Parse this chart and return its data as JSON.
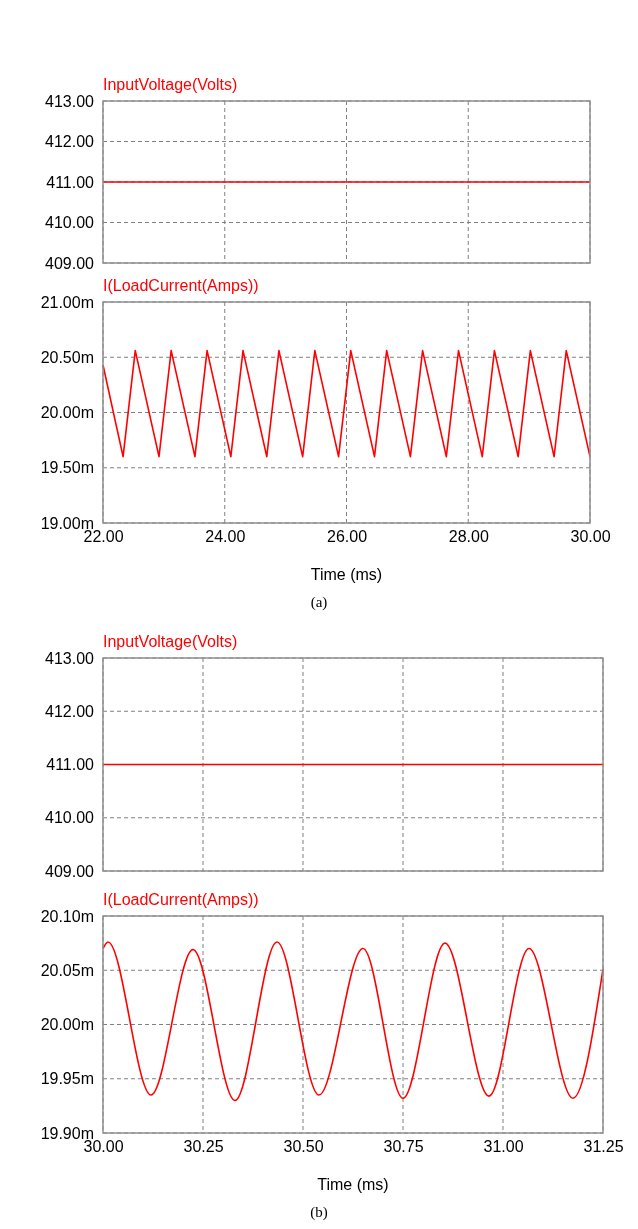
{
  "chart_data": [
    {
      "type": "line",
      "title": "InputVoltage(Volts)",
      "x": [
        22,
        30
      ],
      "xlim": [
        22,
        30
      ],
      "xticks": [
        {
          "value": 22,
          "label": null
        },
        {
          "value": 24,
          "label": null
        },
        {
          "value": 26,
          "label": null
        },
        {
          "value": 28,
          "label": null
        },
        {
          "value": 30,
          "label": null
        }
      ],
      "ylim": [
        409,
        413
      ],
      "yticks": [
        {
          "value": 409,
          "label": "409.00"
        },
        {
          "value": 410,
          "label": "410.00"
        },
        {
          "value": 411,
          "label": "411.00"
        },
        {
          "value": 412,
          "label": "412.00"
        },
        {
          "value": 413,
          "label": "413.00"
        }
      ],
      "grid": true,
      "tick_labels": "y",
      "series": [
        {
          "color": "#ff0000",
          "values": [
            411,
            411
          ]
        }
      ]
    },
    {
      "type": "line",
      "title": "I(LoadCurrent(Amps))",
      "xlabel": "Time (ms)",
      "annotations": [
        "(a)"
      ],
      "x": [
        22,
        22.33,
        22.53,
        22.92,
        23.12,
        23.51,
        23.71,
        24.1,
        24.3,
        24.69,
        24.89,
        25.28,
        25.48,
        25.87,
        26.07,
        26.46,
        26.66,
        27.05,
        27.25,
        27.64,
        27.84,
        28.23,
        28.43,
        28.82,
        29.02,
        29.41,
        29.61,
        30
      ],
      "xlim": [
        22,
        30
      ],
      "xticks": [
        {
          "value": 22,
          "label": "22.00"
        },
        {
          "value": 24,
          "label": "24.00"
        },
        {
          "value": 26,
          "label": "26.00"
        },
        {
          "value": 28,
          "label": "28.00"
        },
        {
          "value": 30,
          "label": "30.00"
        }
      ],
      "ylim": [
        19,
        21
      ],
      "yticks": [
        {
          "value": 19,
          "label": "19.00m"
        },
        {
          "value": 19.5,
          "label": "19.50m"
        },
        {
          "value": 20,
          "label": "20.00m"
        },
        {
          "value": 20.5,
          "label": "20.50m"
        },
        {
          "value": 21,
          "label": "21.00m"
        }
      ],
      "grid": true,
      "series": [
        {
          "color": "#ff0000",
          "values": [
            20.43,
            19.6,
            20.56,
            19.6,
            20.56,
            19.6,
            20.56,
            19.6,
            20.56,
            19.6,
            20.56,
            19.6,
            20.56,
            19.6,
            20.56,
            19.6,
            20.56,
            19.6,
            20.56,
            19.6,
            20.56,
            19.6,
            20.56,
            19.6,
            20.56,
            19.6,
            20.56,
            19.6
          ]
        }
      ]
    },
    {
      "type": "line",
      "title": "InputVoltage(Volts)",
      "x": [
        30,
        31.25
      ],
      "xlim": [
        30,
        31.25
      ],
      "xticks": [
        {
          "value": 30,
          "label": null
        },
        {
          "value": 30.25,
          "label": null
        },
        {
          "value": 30.5,
          "label": null
        },
        {
          "value": 30.75,
          "label": null
        },
        {
          "value": 31,
          "label": null
        },
        {
          "value": 31.25,
          "label": null
        }
      ],
      "ylim": [
        409,
        413
      ],
      "yticks": [
        {
          "value": 409,
          "label": "409.00"
        },
        {
          "value": 410,
          "label": "410.00"
        },
        {
          "value": 411,
          "label": "411.00"
        },
        {
          "value": 412,
          "label": "412.00"
        },
        {
          "value": 413,
          "label": "413.00"
        }
      ],
      "grid": true,
      "tick_labels": "y",
      "series": [
        {
          "color": "#ff0000",
          "values": [
            411,
            411
          ]
        }
      ]
    },
    {
      "type": "line",
      "title": "I(LoadCurrent(Amps))",
      "xlabel": "Time (ms)",
      "annotations": [
        "(b)"
      ],
      "x": [
        30,
        30.0125,
        30.12,
        30.225,
        30.33,
        30.435,
        30.54,
        30.65,
        30.75,
        30.855,
        30.965,
        31.065,
        31.175,
        31.25
      ],
      "xlim": [
        30,
        31.25
      ],
      "xticks": [
        {
          "value": 30,
          "label": "30.00"
        },
        {
          "value": 30.25,
          "label": "30.25"
        },
        {
          "value": 30.5,
          "label": "30.50"
        },
        {
          "value": 30.75,
          "label": "30.75"
        },
        {
          "value": 31,
          "label": "31.00"
        },
        {
          "value": 31.25,
          "label": "31.25"
        }
      ],
      "ylim": [
        19.9,
        20.1
      ],
      "yticks": [
        {
          "value": 19.9,
          "label": "19.90m"
        },
        {
          "value": 19.95,
          "label": "19.95m"
        },
        {
          "value": 20,
          "label": "20.00m"
        },
        {
          "value": 20.05,
          "label": "20.05m"
        },
        {
          "value": 20.1,
          "label": "20.10m"
        }
      ],
      "grid": true,
      "series": [
        {
          "color": "#ff0000",
          "values": [
            20.07,
            20.076,
            19.935,
            20.069,
            19.93,
            20.076,
            19.935,
            20.07,
            19.932,
            20.075,
            19.934,
            20.07,
            19.932,
            20.051
          ]
        }
      ]
    }
  ]
}
